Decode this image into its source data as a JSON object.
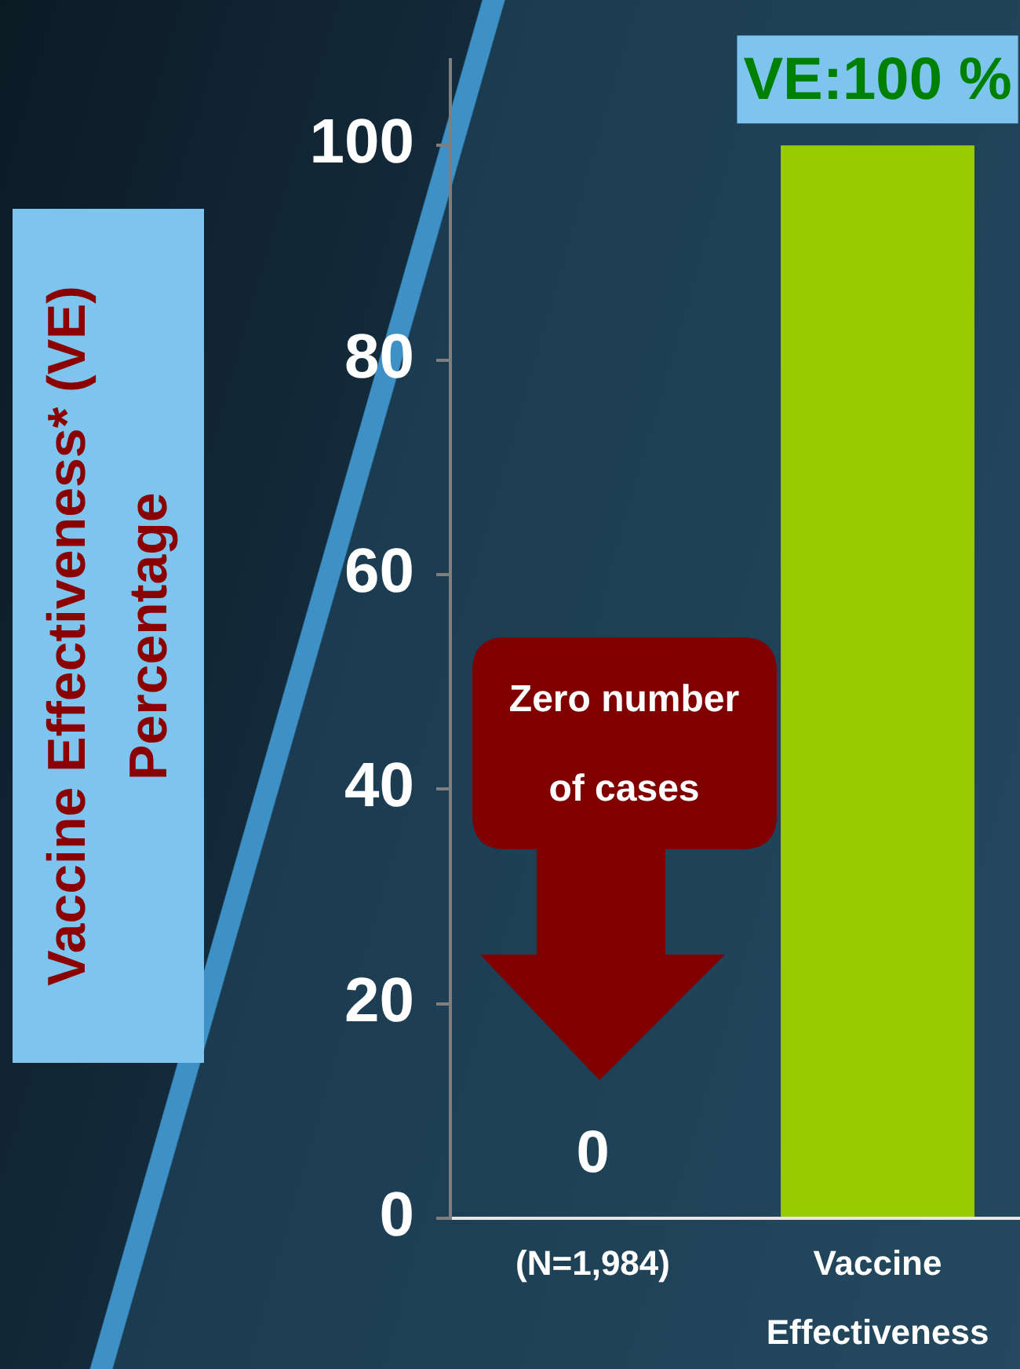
{
  "chart_data": {
    "type": "bar",
    "ylabel": "Vaccine Effectiveness* (VE) Percentage",
    "categories": [
      "(N=1,984)",
      "Vaccine Effectiveness"
    ],
    "values": [
      0,
      100
    ],
    "colors": [
      "#99cc00",
      "#99cc00"
    ],
    "value_labels": [
      "0",
      "VE:100 %"
    ],
    "ylim": [
      0,
      108
    ],
    "yticks": [
      0,
      20,
      40,
      60,
      80,
      100
    ],
    "annotations": [
      "Zero number of cases"
    ]
  }
}
